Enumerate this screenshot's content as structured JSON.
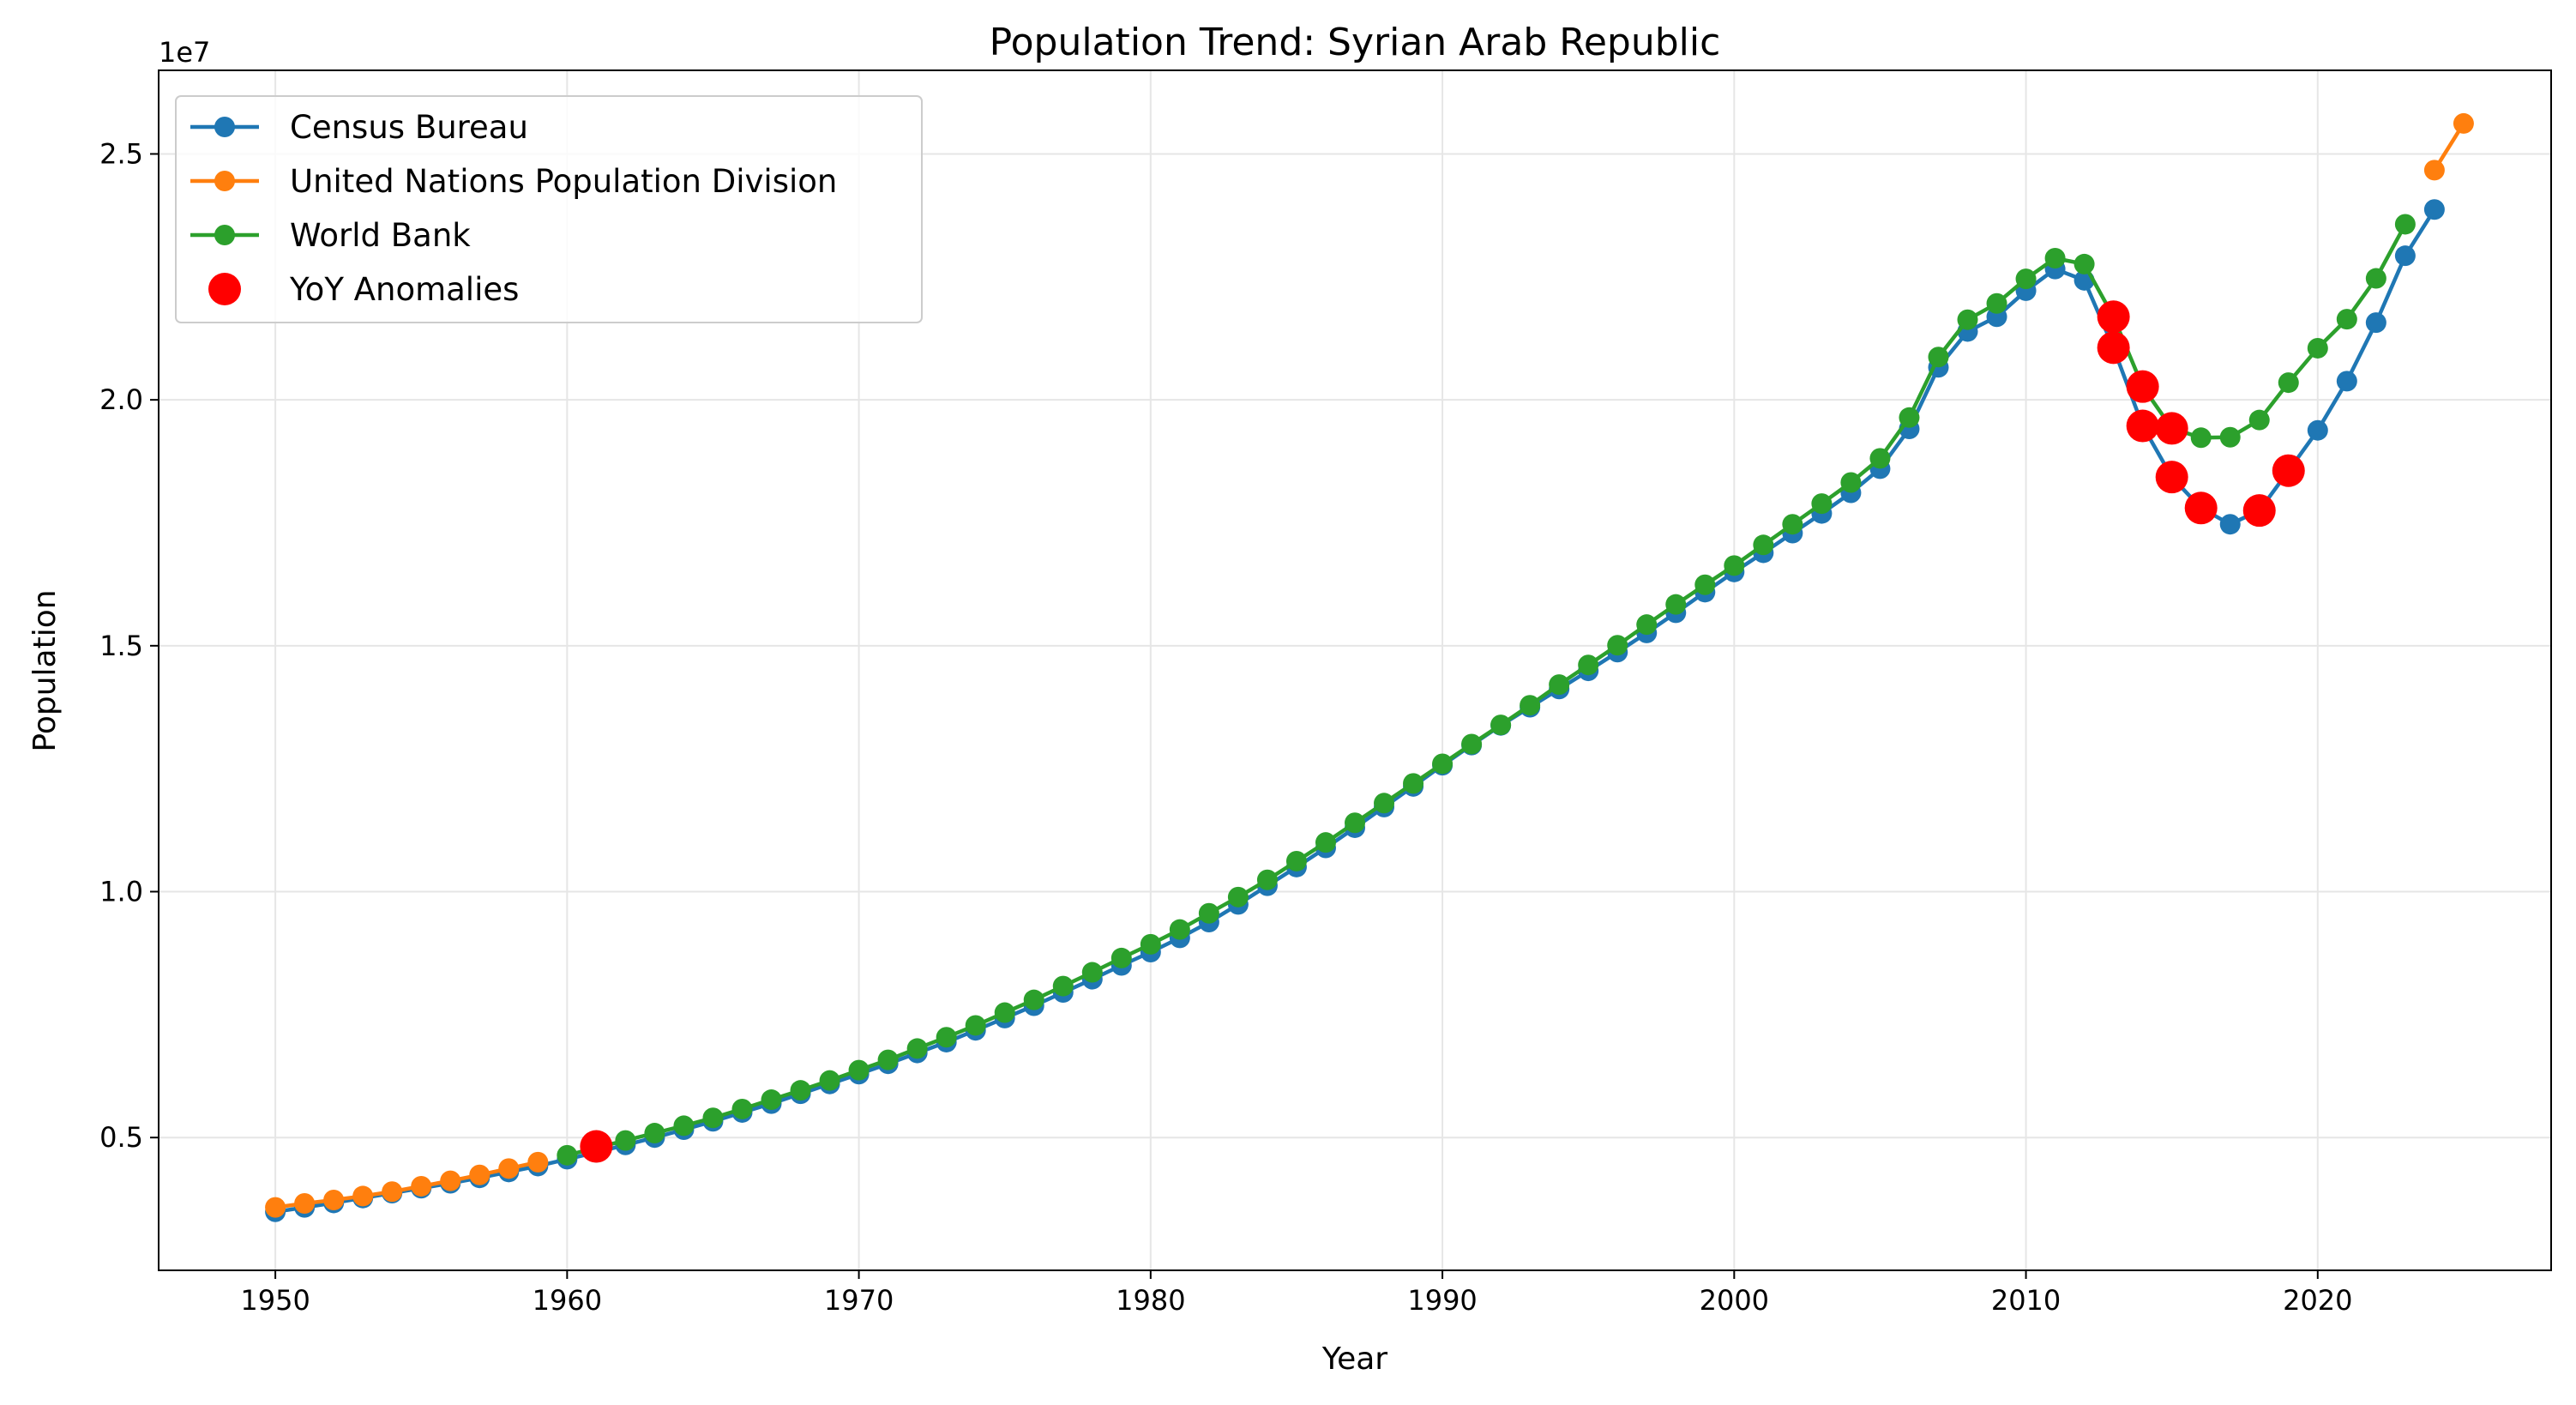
{
  "chart_data": {
    "type": "line",
    "title": "Population Trend: Syrian Arab Republic",
    "xlabel": "Year",
    "ylabel": "Population",
    "y_offset_label": "1e7",
    "xlim": [
      1946,
      2028
    ],
    "ylim": [
      2.3,
      26.7
    ],
    "y_unit_scale": 10000000,
    "x_ticks": [
      1950,
      1960,
      1970,
      1980,
      1990,
      2000,
      2010,
      2020
    ],
    "y_ticks": [
      5,
      10,
      15,
      20,
      25
    ],
    "y_tick_labels": [
      "0.5",
      "1.0",
      "1.5",
      "2.0",
      "2.5"
    ],
    "grid": true,
    "legend_position": "upper-left",
    "series": [
      {
        "name": "Census Bureau",
        "color": "#1f77b4",
        "x": [
          1950,
          1951,
          1952,
          1953,
          1954,
          1955,
          1956,
          1957,
          1958,
          1959,
          1960,
          1961,
          1962,
          1963,
          1964,
          1965,
          1966,
          1967,
          1968,
          1969,
          1970,
          1971,
          1972,
          1973,
          1974,
          1975,
          1976,
          1977,
          1978,
          1979,
          1980,
          1981,
          1982,
          1983,
          1984,
          1985,
          1986,
          1987,
          1988,
          1989,
          1990,
          1991,
          1992,
          1993,
          1994,
          1995,
          1996,
          1997,
          1998,
          1999,
          2000,
          2001,
          2002,
          2003,
          2004,
          2005,
          2006,
          2007,
          2008,
          2009,
          2010,
          2011,
          2012,
          2013,
          2014,
          2015,
          2016,
          2017,
          2018,
          2019,
          2020,
          2021,
          2022,
          2023,
          2024
        ],
        "y": [
          3.49,
          3.58,
          3.67,
          3.77,
          3.87,
          3.97,
          4.07,
          4.18,
          4.3,
          4.42,
          4.56,
          4.7,
          4.85,
          5.0,
          5.16,
          5.33,
          5.51,
          5.69,
          5.89,
          6.09,
          6.29,
          6.5,
          6.72,
          6.94,
          7.18,
          7.43,
          7.68,
          7.95,
          8.22,
          8.5,
          8.77,
          9.06,
          9.38,
          9.74,
          10.12,
          10.5,
          10.89,
          11.3,
          11.72,
          12.14,
          12.57,
          12.98,
          13.38,
          13.75,
          14.12,
          14.49,
          14.87,
          15.26,
          15.67,
          16.09,
          16.5,
          16.89,
          17.29,
          17.69,
          18.11,
          18.6,
          19.41,
          20.66,
          21.39,
          21.69,
          22.22,
          22.66,
          22.43,
          21.06,
          19.47,
          18.43,
          17.8,
          17.47,
          17.75,
          18.56,
          19.38,
          20.38,
          21.57,
          22.93,
          23.87
        ]
      },
      {
        "name": "United Nations Population Division",
        "color": "#ff7f0e",
        "x": [
          1950,
          1951,
          1952,
          1953,
          1954,
          1955,
          1956,
          1957,
          1958,
          1959,
          2024,
          2025
        ],
        "y": [
          3.58,
          3.66,
          3.73,
          3.81,
          3.9,
          4.01,
          4.12,
          4.24,
          4.37,
          4.5,
          24.67,
          25.62
        ]
      },
      {
        "name": "World Bank",
        "color": "#2ca02c",
        "x": [
          1960,
          1961,
          1962,
          1963,
          1964,
          1965,
          1966,
          1967,
          1968,
          1969,
          1970,
          1971,
          1972,
          1973,
          1974,
          1975,
          1976,
          1977,
          1978,
          1979,
          1980,
          1981,
          1982,
          1983,
          1984,
          1985,
          1986,
          1987,
          1988,
          1989,
          1990,
          1991,
          1992,
          1993,
          1994,
          1995,
          1996,
          1997,
          1998,
          1999,
          2000,
          2001,
          2002,
          2003,
          2004,
          2005,
          2006,
          2007,
          2008,
          2009,
          2010,
          2011,
          2012,
          2013,
          2014,
          2015,
          2016,
          2017,
          2018,
          2019,
          2020,
          2021,
          2022,
          2023
        ],
        "y": [
          4.64,
          4.79,
          4.94,
          5.09,
          5.24,
          5.4,
          5.58,
          5.77,
          5.96,
          6.16,
          6.37,
          6.58,
          6.81,
          7.04,
          7.28,
          7.54,
          7.8,
          8.08,
          8.36,
          8.65,
          8.93,
          9.23,
          9.56,
          9.89,
          10.24,
          10.62,
          11.0,
          11.4,
          11.8,
          12.2,
          12.6,
          13.0,
          13.39,
          13.79,
          14.21,
          14.61,
          15.01,
          15.43,
          15.84,
          16.24,
          16.63,
          17.05,
          17.47,
          17.89,
          18.32,
          18.81,
          19.64,
          20.87,
          21.63,
          21.96,
          22.46,
          22.88,
          22.76,
          21.69,
          20.27,
          19.42,
          19.23,
          19.24,
          19.59,
          20.35,
          21.05,
          21.64,
          22.47,
          23.57
        ]
      },
      {
        "name": "YoY Anomalies",
        "color": "#ff0000",
        "marker_only": true,
        "x": [
          1961,
          2013,
          2013,
          2014,
          2014,
          2015,
          2015,
          2016,
          2018,
          2019
        ],
        "y": [
          4.82,
          21.69,
          21.06,
          20.27,
          19.47,
          19.42,
          18.43,
          17.8,
          17.75,
          18.56
        ]
      }
    ]
  }
}
